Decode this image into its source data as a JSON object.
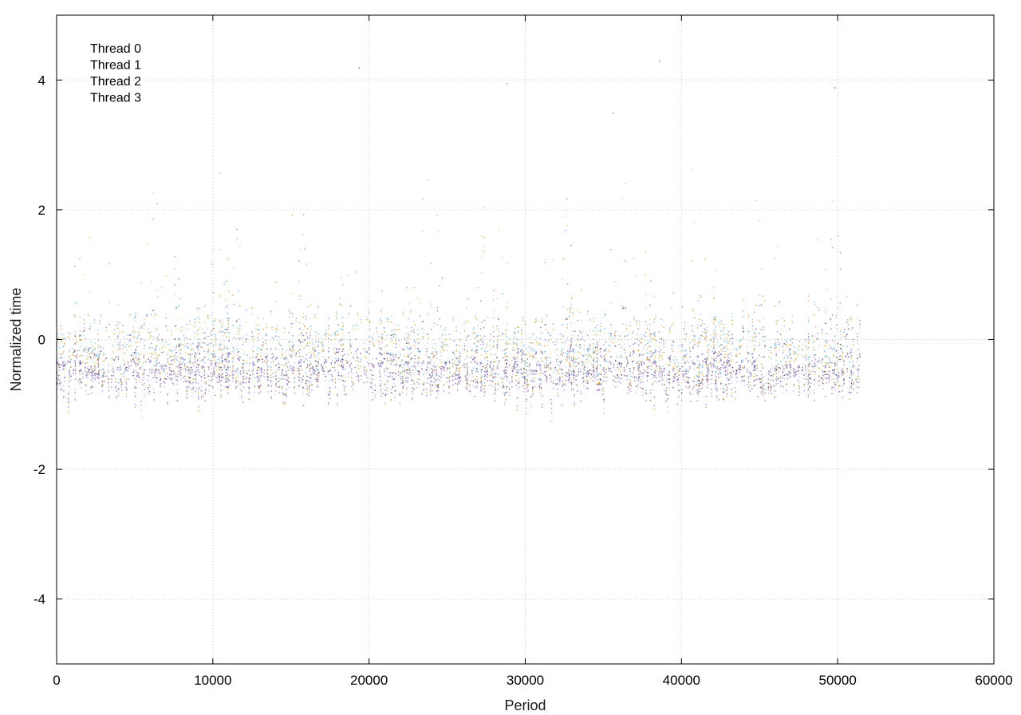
{
  "chart_data": {
    "type": "scatter",
    "title": "",
    "xlabel": "Period",
    "ylabel": "Normalized time",
    "xlim": [
      0,
      60000
    ],
    "ylim": [
      -5,
      5
    ],
    "xticks": [
      0,
      10000,
      20000,
      30000,
      40000,
      50000,
      60000
    ],
    "yticks": [
      -4,
      -2,
      0,
      2,
      4
    ],
    "grid": true,
    "legend_position": "top-left",
    "series": [
      {
        "name": "Thread 0",
        "color": "#3a1f5d",
        "x_range": [
          0,
          51400
        ],
        "center": -0.5,
        "spread": 0.25,
        "spike_max": 0.5
      },
      {
        "name": "Thread 1",
        "color": "#9a6fcf",
        "x_range": [
          0,
          51400
        ],
        "center": -0.55,
        "spread": 0.3,
        "spike_max": 0.6
      },
      {
        "name": "Thread 2",
        "color": "#56abd0",
        "x_range": [
          0,
          51400
        ],
        "center": -0.2,
        "spread": 0.45,
        "spike_max": 2.4
      },
      {
        "name": "Thread 3",
        "color": "#d4a22b",
        "x_range": [
          0,
          51400
        ],
        "center": -0.3,
        "spread": 0.5,
        "spike_max": 2.4
      }
    ]
  }
}
